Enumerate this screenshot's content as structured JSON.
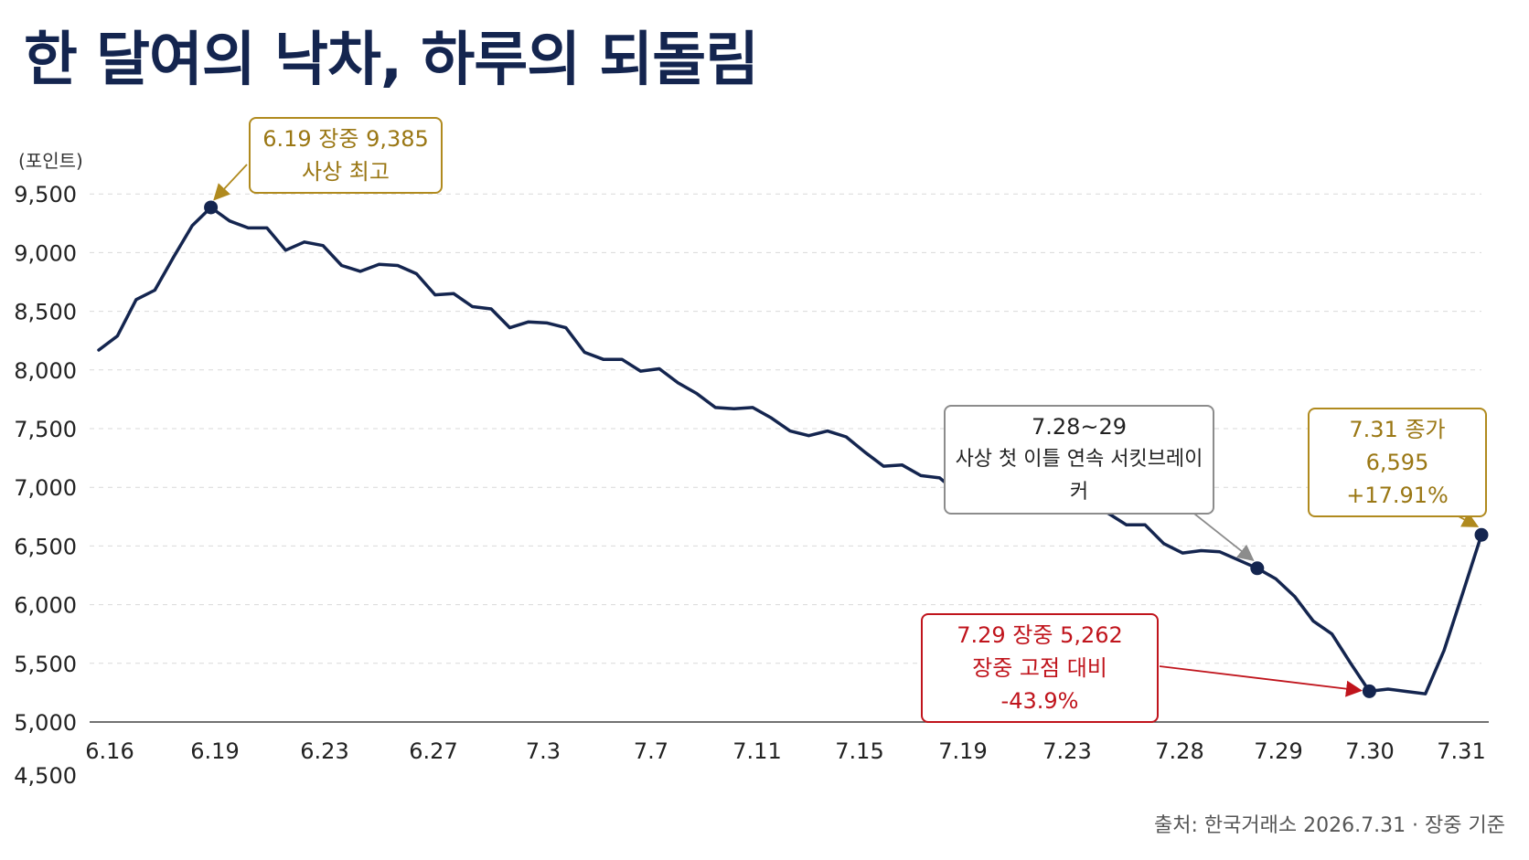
{
  "title": "한 달여의 낙차, 하루의 되돌림",
  "source": "출처: 한국거래소 2026.7.31 · 장중 기준",
  "colors": {
    "line": "#14254f",
    "gold": "#b08a1e",
    "gray": "#8c8c8c",
    "red": "#c0141c",
    "grid": "#d9d9d9"
  },
  "callouts": {
    "peak": {
      "line1": "6.19 장중 9,385",
      "line2": "사상 최고"
    },
    "breaker": {
      "line1": "7.28~29",
      "line2": "사상 첫 이틀 연속 서킷브레이커"
    },
    "low": {
      "line1": "7.29 장중 5,262",
      "line2": "장중 고점 대비 -43.9%"
    },
    "close": {
      "line1": "7.31 종가 6,595",
      "line2": "+17.91%"
    }
  },
  "chart_data": {
    "type": "line",
    "title": "한 달여의 낙차, 하루의 되돌림",
    "ylabel": "(포인트)",
    "xlabel": "",
    "ylim": [
      4500,
      9500
    ],
    "yticks": [
      4500,
      5000,
      5500,
      6000,
      6500,
      7000,
      7500,
      8000,
      8500,
      9000,
      9500
    ],
    "ytick_labels": [
      "4,500",
      "5,000",
      "5,500",
      "6,000",
      "6,500",
      "7,000",
      "7,500",
      "8,000",
      "8,500",
      "9,000",
      "9,500"
    ],
    "xtick_labels": [
      "6.16",
      "6.19",
      "6.23",
      "6.27",
      "7.3",
      "7.7",
      "7.11",
      "7.15",
      "7.19",
      "7.23",
      "7.28",
      "7.29",
      "7.30",
      "7.31"
    ],
    "grid": true,
    "series": [
      {
        "values": [
          8170,
          8290,
          8600,
          8680,
          8960,
          9230,
          9385,
          9270,
          9210,
          9210,
          9020,
          9090,
          9060,
          8890,
          8840,
          8900,
          8890,
          8820,
          8640,
          8650,
          8540,
          8520,
          8360,
          8410,
          8400,
          8360,
          8150,
          8090,
          8090,
          7990,
          8010,
          7890,
          7800,
          7680,
          7670,
          7680,
          7590,
          7480,
          7440,
          7480,
          7430,
          7300,
          7180,
          7190,
          7100,
          7080,
          6950,
          6870,
          6910,
          6910,
          6820,
          6820,
          6810,
          6790,
          6780,
          6680,
          6680,
          6520,
          6440,
          6460,
          6450,
          6380,
          6310,
          6220,
          6070,
          5860,
          5750,
          5500,
          5262,
          5280,
          5260,
          5240,
          5610,
          6100,
          6595
        ]
      }
    ],
    "annotations": [
      {
        "label": "6.19 장중 9,385 사상 최고",
        "value": 9385
      },
      {
        "label": "7.28~29 사상 첫 이틀 연속 서킷브레이커",
        "value": 6310
      },
      {
        "label": "7.29 장중 5,262 장중 고점 대비 -43.9%",
        "value": 5262
      },
      {
        "label": "7.31 종가 6,595 +17.91%",
        "value": 6595
      }
    ]
  }
}
